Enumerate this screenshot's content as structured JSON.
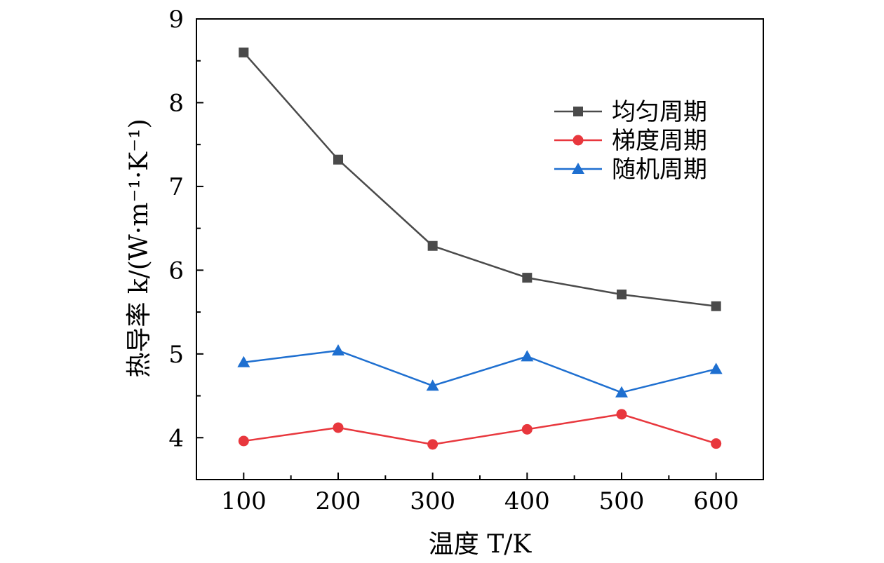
{
  "chart_data": {
    "type": "line",
    "xlabel": "温度 T/K",
    "ylabel": "热导率 k/(W·m⁻¹·K⁻¹)",
    "x": [
      100,
      200,
      300,
      400,
      500,
      600
    ],
    "xlim": [
      50,
      650
    ],
    "ylim": [
      3.5,
      9
    ],
    "xticks": [
      100,
      200,
      300,
      400,
      500,
      600
    ],
    "yticks": [
      4,
      5,
      6,
      7,
      8,
      9
    ],
    "grid": false,
    "legend_position": "top-right",
    "series": [
      {
        "name": "均匀周期",
        "color": "#4a4a4a",
        "marker": "square",
        "values": [
          8.6,
          7.32,
          6.29,
          5.91,
          5.71,
          5.57
        ]
      },
      {
        "name": "梯度周期",
        "color": "#e8373d",
        "marker": "circle",
        "values": [
          3.96,
          4.12,
          3.92,
          4.1,
          4.28,
          3.93
        ]
      },
      {
        "name": "随机周期",
        "color": "#1e6fd0",
        "marker": "triangle",
        "values": [
          4.9,
          5.04,
          4.62,
          4.97,
          4.54,
          4.82
        ]
      }
    ]
  }
}
